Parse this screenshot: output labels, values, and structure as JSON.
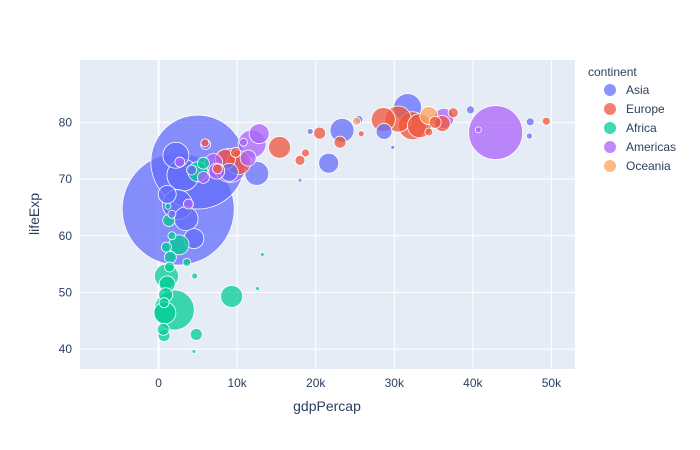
{
  "chart_data": {
    "type": "scatter",
    "subtype": "bubble",
    "title": "",
    "xlabel": "gdpPercap",
    "ylabel": "lifeExp",
    "xlim": [
      -10000,
      53000
    ],
    "ylim": [
      36.5,
      91
    ],
    "x_ticks": [
      0,
      10000,
      20000,
      30000,
      40000,
      50000
    ],
    "x_tick_labels": [
      "0",
      "10k",
      "20k",
      "30k",
      "40k",
      "50k"
    ],
    "y_ticks": [
      40,
      50,
      60,
      70,
      80
    ],
    "y_tick_labels": [
      "40",
      "50",
      "60",
      "70",
      "80"
    ],
    "grid": true,
    "legend": {
      "title": "continent",
      "placement": "top-right"
    },
    "series": [
      {
        "name": "Asia",
        "color": "#636efa",
        "points": [
          {
            "x": 2500,
            "y": 64.7,
            "size": 56
          },
          {
            "x": 5000,
            "y": 73.0,
            "size": 47
          },
          {
            "x": 31700,
            "y": 82.6,
            "size": 14
          },
          {
            "x": 2200,
            "y": 74.2,
            "size": 13
          },
          {
            "x": 3100,
            "y": 70.7,
            "size": 16
          },
          {
            "x": 2400,
            "y": 65.5,
            "size": 15
          },
          {
            "x": 3500,
            "y": 63.0,
            "size": 12
          },
          {
            "x": 12500,
            "y": 71.0,
            "size": 12
          },
          {
            "x": 23350,
            "y": 78.6,
            "size": 12
          },
          {
            "x": 21650,
            "y": 72.8,
            "size": 10
          },
          {
            "x": 4500,
            "y": 59.5,
            "size": 10
          },
          {
            "x": 1100,
            "y": 67.3,
            "size": 9
          },
          {
            "x": 9000,
            "y": 71.2,
            "size": 9
          },
          {
            "x": 28700,
            "y": 78.4,
            "size": 8
          },
          {
            "x": 47300,
            "y": 80.1,
            "size": 4
          },
          {
            "x": 39700,
            "y": 82.2,
            "size": 4
          },
          {
            "x": 25500,
            "y": 80.5,
            "size": 4
          },
          {
            "x": 19300,
            "y": 78.4,
            "size": 3
          },
          {
            "x": 47200,
            "y": 77.6,
            "size": 3
          },
          {
            "x": 29800,
            "y": 75.6,
            "size": 2
          },
          {
            "x": 4200,
            "y": 71.6,
            "size": 5
          },
          {
            "x": 1700,
            "y": 63.8,
            "size": 4
          }
        ]
      },
      {
        "name": "Europe",
        "color": "#EF553B",
        "points": [
          {
            "x": 32300,
            "y": 79.4,
            "size": 14
          },
          {
            "x": 30500,
            "y": 80.6,
            "size": 13
          },
          {
            "x": 33200,
            "y": 79.4,
            "size": 12
          },
          {
            "x": 28600,
            "y": 80.5,
            "size": 12
          },
          {
            "x": 15400,
            "y": 75.6,
            "size": 11
          },
          {
            "x": 10200,
            "y": 72.9,
            "size": 12
          },
          {
            "x": 8500,
            "y": 73.5,
            "size": 10
          },
          {
            "x": 36100,
            "y": 79.8,
            "size": 8
          },
          {
            "x": 37500,
            "y": 81.7,
            "size": 5
          },
          {
            "x": 35200,
            "y": 80.0,
            "size": 6
          },
          {
            "x": 23100,
            "y": 76.5,
            "size": 6
          },
          {
            "x": 20500,
            "y": 78.1,
            "size": 6
          },
          {
            "x": 18000,
            "y": 73.3,
            "size": 5
          },
          {
            "x": 49350,
            "y": 80.2,
            "size": 4
          },
          {
            "x": 18700,
            "y": 74.6,
            "size": 4
          },
          {
            "x": 25800,
            "y": 78.0,
            "size": 3
          },
          {
            "x": 5900,
            "y": 76.4,
            "size": 4
          },
          {
            "x": 7500,
            "y": 71.8,
            "size": 5
          },
          {
            "x": 9800,
            "y": 74.7,
            "size": 5
          },
          {
            "x": 34400,
            "y": 78.3,
            "size": 4
          }
        ]
      },
      {
        "name": "Africa",
        "color": "#00cc96",
        "points": [
          {
            "x": 2000,
            "y": 46.9,
            "size": 20
          },
          {
            "x": 1000,
            "y": 52.9,
            "size": 12
          },
          {
            "x": 800,
            "y": 46.4,
            "size": 11
          },
          {
            "x": 2600,
            "y": 58.4,
            "size": 10
          },
          {
            "x": 5000,
            "y": 71.3,
            "size": 10
          },
          {
            "x": 9300,
            "y": 49.3,
            "size": 11
          },
          {
            "x": 1100,
            "y": 51.5,
            "size": 8
          },
          {
            "x": 700,
            "y": 42.4,
            "size": 6
          },
          {
            "x": 1500,
            "y": 56.2,
            "size": 6
          },
          {
            "x": 1300,
            "y": 62.7,
            "size": 6
          },
          {
            "x": 900,
            "y": 49.6,
            "size": 7
          },
          {
            "x": 4800,
            "y": 42.6,
            "size": 6
          },
          {
            "x": 600,
            "y": 43.5,
            "size": 6
          },
          {
            "x": 700,
            "y": 48.2,
            "size": 5
          },
          {
            "x": 5700,
            "y": 72.8,
            "size": 6
          },
          {
            "x": 1000,
            "y": 58.0,
            "size": 5
          },
          {
            "x": 1400,
            "y": 54.5,
            "size": 5
          },
          {
            "x": 3600,
            "y": 55.3,
            "size": 4
          },
          {
            "x": 4600,
            "y": 52.9,
            "size": 3
          },
          {
            "x": 13200,
            "y": 56.7,
            "size": 2
          },
          {
            "x": 12600,
            "y": 50.7,
            "size": 2
          },
          {
            "x": 4500,
            "y": 39.6,
            "size": 2
          },
          {
            "x": 1200,
            "y": 65.2,
            "size": 3
          },
          {
            "x": 1700,
            "y": 60.0,
            "size": 4
          }
        ]
      },
      {
        "name": "Americas",
        "color": "#ab63fa",
        "points": [
          {
            "x": 42900,
            "y": 78.2,
            "size": 27
          },
          {
            "x": 9100,
            "y": 72.4,
            "size": 17
          },
          {
            "x": 11900,
            "y": 76.2,
            "size": 14
          },
          {
            "x": 12800,
            "y": 78.0,
            "size": 10
          },
          {
            "x": 7000,
            "y": 72.9,
            "size": 9
          },
          {
            "x": 36300,
            "y": 80.7,
            "size": 10
          },
          {
            "x": 11400,
            "y": 73.7,
            "size": 8
          },
          {
            "x": 7400,
            "y": 71.4,
            "size": 8
          },
          {
            "x": 5700,
            "y": 70.3,
            "size": 6
          },
          {
            "x": 3800,
            "y": 65.6,
            "size": 5
          },
          {
            "x": 6000,
            "y": 76.1,
            "size": 5
          },
          {
            "x": 10800,
            "y": 76.5,
            "size": 4
          },
          {
            "x": 18000,
            "y": 69.8,
            "size": 2
          },
          {
            "x": 40700,
            "y": 78.7,
            "size": 3
          },
          {
            "x": 2700,
            "y": 73.0,
            "size": 5
          }
        ]
      },
      {
        "name": "Oceania",
        "color": "#FFA15A",
        "points": [
          {
            "x": 34400,
            "y": 81.2,
            "size": 9
          },
          {
            "x": 25200,
            "y": 80.2,
            "size": 4
          }
        ]
      }
    ]
  }
}
